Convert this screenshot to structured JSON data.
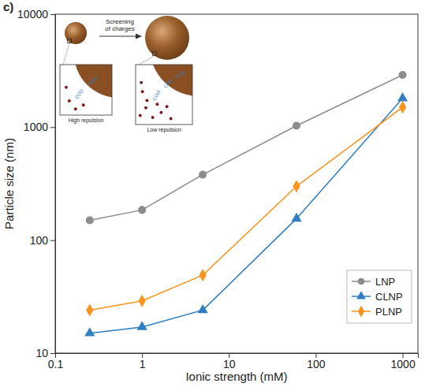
{
  "chart_data": {
    "type": "line",
    "title": "c)",
    "x_label": "Ionic strength (mM)",
    "y_label": "Particle size (nm)",
    "x": [
      0.25,
      1,
      5,
      60,
      1000
    ],
    "series": [
      {
        "name": "LNP",
        "color": "#8c8c8c",
        "marker": "circle",
        "values": [
          150,
          185,
          380,
          1030,
          2900
        ]
      },
      {
        "name": "CLNP",
        "color": "#2e7ec1",
        "marker": "triangle",
        "values": [
          15,
          17,
          24,
          155,
          1800
        ]
      },
      {
        "name": "PLNP",
        "color": "#f7941d",
        "marker": "diamond",
        "values": [
          24,
          29,
          49,
          300,
          1500
        ]
      }
    ],
    "xlim": [
      0.1,
      1500
    ],
    "xticks": [
      0.1,
      1,
      10,
      100,
      1000
    ],
    "ylim": [
      10,
      10000
    ],
    "yticks": [
      10,
      100,
      1000,
      10000
    ],
    "log": true,
    "grid": false,
    "legend": "lower right",
    "annotations": [
      "Screening of charges",
      "High repulsion",
      "Low repulsion",
      "COO"
    ]
  }
}
